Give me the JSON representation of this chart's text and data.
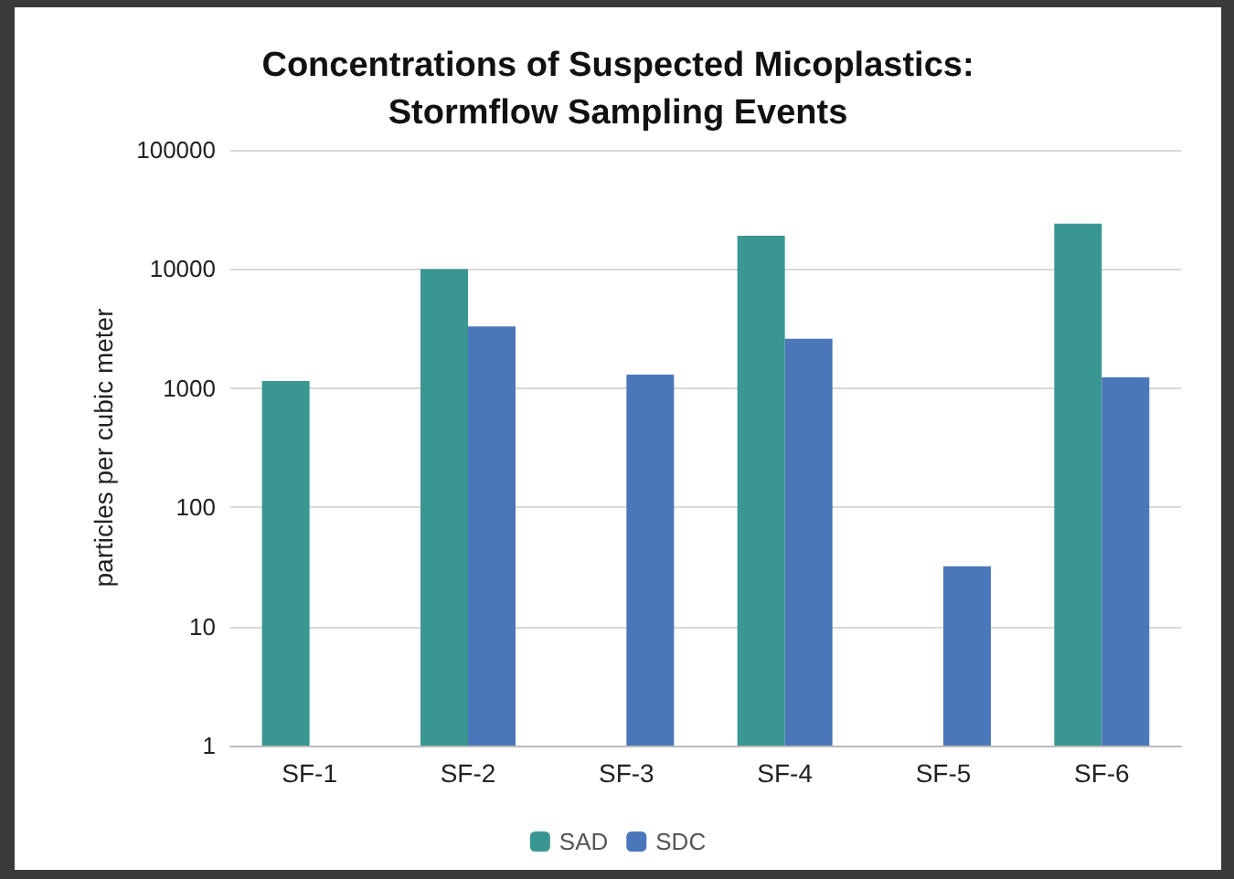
{
  "chart_data": {
    "type": "bar",
    "title": "Concentrations of Suspected Micoplastics:\nStormflow Sampling Events",
    "ylabel": "particles per cubic meter",
    "categories": [
      "SF-1",
      "SF-2",
      "SF-3",
      "SF-4",
      "SF-5",
      "SF-6"
    ],
    "series": [
      {
        "name": "SAD",
        "color": "#3a9691",
        "values": [
          1150,
          10000,
          null,
          19000,
          null,
          24000
        ]
      },
      {
        "name": "SDC",
        "color": "#4a77b9",
        "values": [
          null,
          3300,
          1300,
          2600,
          32,
          1230
        ]
      }
    ],
    "log": true,
    "ylim": [
      1,
      100000
    ],
    "yticks": [
      1,
      10,
      100,
      1000,
      10000,
      100000
    ],
    "grid": "y",
    "legend": "bottom"
  }
}
